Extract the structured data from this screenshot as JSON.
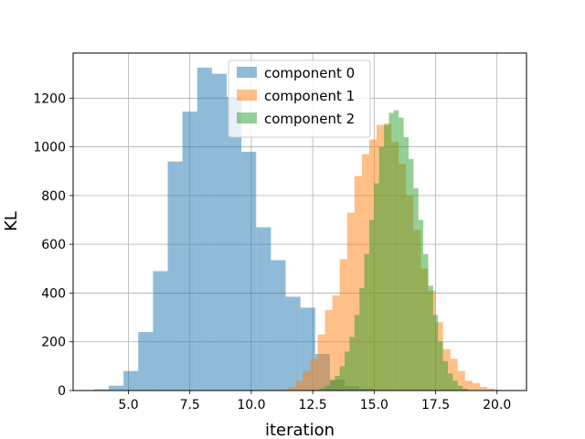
{
  "chart_data": {
    "type": "bar",
    "title": "",
    "xlabel": "iteration",
    "ylabel": "KL",
    "xlim": [
      2.75,
      21.2
    ],
    "ylim": [
      0,
      1385
    ],
    "xticks": [
      5.0,
      7.5,
      10.0,
      12.5,
      15.0,
      17.5,
      20.0
    ],
    "xtick_labels": [
      "5.0",
      "7.5",
      "10.0",
      "12.5",
      "15.0",
      "17.5",
      "20.0"
    ],
    "yticks": [
      0,
      200,
      400,
      600,
      800,
      1000,
      1200
    ],
    "ytick_labels": [
      "0",
      "200",
      "400",
      "600",
      "800",
      "1000",
      "1200"
    ],
    "grid": true,
    "legend_position": "top-center",
    "bar_alpha": 0.5,
    "series": [
      {
        "name": "component 0",
        "color": "#1f77b4",
        "bin_start": 3.6,
        "bin_width": 0.6,
        "values": [
          5,
          20,
          80,
          240,
          490,
          940,
          1145,
          1325,
          1300,
          1205,
          980,
          670,
          535,
          385,
          340,
          150,
          45,
          18,
          8,
          2
        ]
      },
      {
        "name": "component 1",
        "color": "#ff7f0e",
        "bin_start": 11.2,
        "bin_width": 0.3,
        "values": [
          5,
          15,
          40,
          80,
          130,
          230,
          330,
          390,
          540,
          730,
          880,
          970,
          1030,
          1090,
          1095,
          1020,
          930,
          800,
          660,
          500,
          410,
          280,
          170,
          130,
          80,
          40,
          30,
          15,
          8,
          3
        ]
      },
      {
        "name": "component 2",
        "color": "#2ca02c",
        "bin_start": 12.8,
        "bin_width": 0.2,
        "values": [
          10,
          20,
          40,
          60,
          100,
          160,
          220,
          310,
          420,
          560,
          700,
          850,
          1000,
          1090,
          1140,
          1150,
          1120,
          1040,
          950,
          830,
          700,
          560,
          430,
          310,
          200,
          120,
          70,
          40,
          20,
          8
        ]
      }
    ]
  }
}
